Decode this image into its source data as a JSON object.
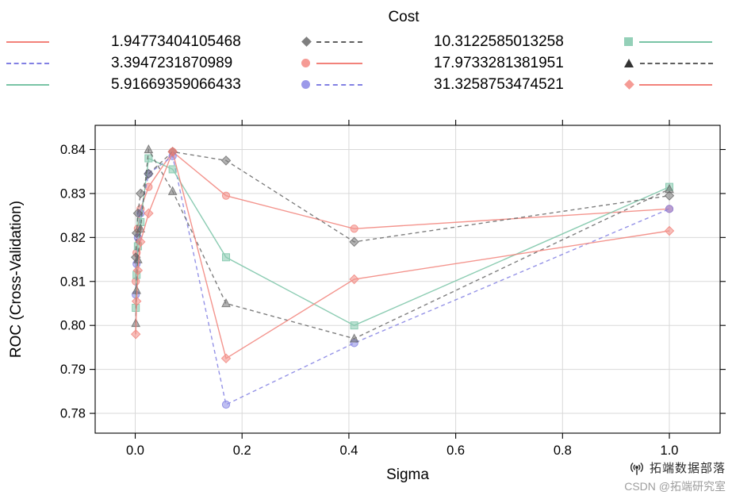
{
  "legend": {
    "title": "Cost",
    "colors": {
      "red": "#f2827a",
      "blue": "#8280e3",
      "teal": "#79c4a6",
      "grey": "#5f5f5f"
    },
    "rows": [
      {
        "label1": "1.94773404105468",
        "label2": "10.3122585013258"
      },
      {
        "label1": "3.3947231870989",
        "label2": "17.9733281381951"
      },
      {
        "label1": "5.91669359066433",
        "label2": "31.3258753474521"
      }
    ]
  },
  "chart_data": {
    "type": "line",
    "title": "",
    "xlabel": "Sigma",
    "ylabel": "ROC (Cross-Validation)",
    "grid": true,
    "legend_position": "top",
    "legend_title": "Cost",
    "x_ticks": [
      "0.0",
      "0.2",
      "0.4",
      "0.6",
      "0.8",
      "1.0"
    ],
    "y_ticks": [
      "0.78",
      "0.79",
      "0.80",
      "0.81",
      "0.82",
      "0.83",
      "0.84"
    ],
    "xlim": [
      -0.075,
      1.095
    ],
    "ylim": [
      0.7755,
      0.8455
    ],
    "x": [
      0.001,
      0.0025,
      0.005,
      0.01,
      0.025,
      0.07,
      0.17,
      0.41,
      1.0
    ],
    "series": [
      {
        "name": "1.94773404105468",
        "color_key": "red",
        "line": "solid",
        "marker": "circle",
        "values": [
          0.81,
          0.8165,
          0.822,
          0.8265,
          0.8315,
          0.8395,
          0.8295,
          0.822,
          0.8265
        ]
      },
      {
        "name": "3.3947231870989",
        "color_key": "blue",
        "line": "dashed",
        "marker": "circle",
        "values": [
          0.807,
          0.814,
          0.82,
          0.8255,
          0.8345,
          0.8385,
          0.782,
          0.796,
          0.8265
        ]
      },
      {
        "name": "5.91669359066433",
        "color_key": "teal",
        "line": "solid",
        "marker": "square",
        "values": [
          0.804,
          0.8115,
          0.818,
          0.8235,
          0.838,
          0.8355,
          0.8155,
          0.8,
          0.8315
        ]
      },
      {
        "name": "10.3122585013258",
        "color_key": "grey",
        "line": "dashed",
        "marker": "diamond",
        "values": [
          0.8155,
          0.821,
          0.8255,
          0.83,
          0.8345,
          0.8395,
          0.8375,
          0.819,
          0.8295
        ]
      },
      {
        "name": "17.9733281381951",
        "color_key": "grey",
        "line": "dashed",
        "marker": "triangle",
        "values": [
          0.8005,
          0.808,
          0.815,
          0.822,
          0.84,
          0.8305,
          0.805,
          0.797,
          0.831
        ]
      },
      {
        "name": "31.3258753474521",
        "color_key": "red",
        "line": "solid",
        "marker": "diamond",
        "values": [
          0.798,
          0.8055,
          0.8125,
          0.819,
          0.8255,
          0.8395,
          0.7925,
          0.8105,
          0.8215
        ]
      }
    ]
  },
  "watermark": {
    "brand": "拓端数据部落",
    "credit": "CSDN @拓端研究室",
    "icon": "signal-icon"
  }
}
